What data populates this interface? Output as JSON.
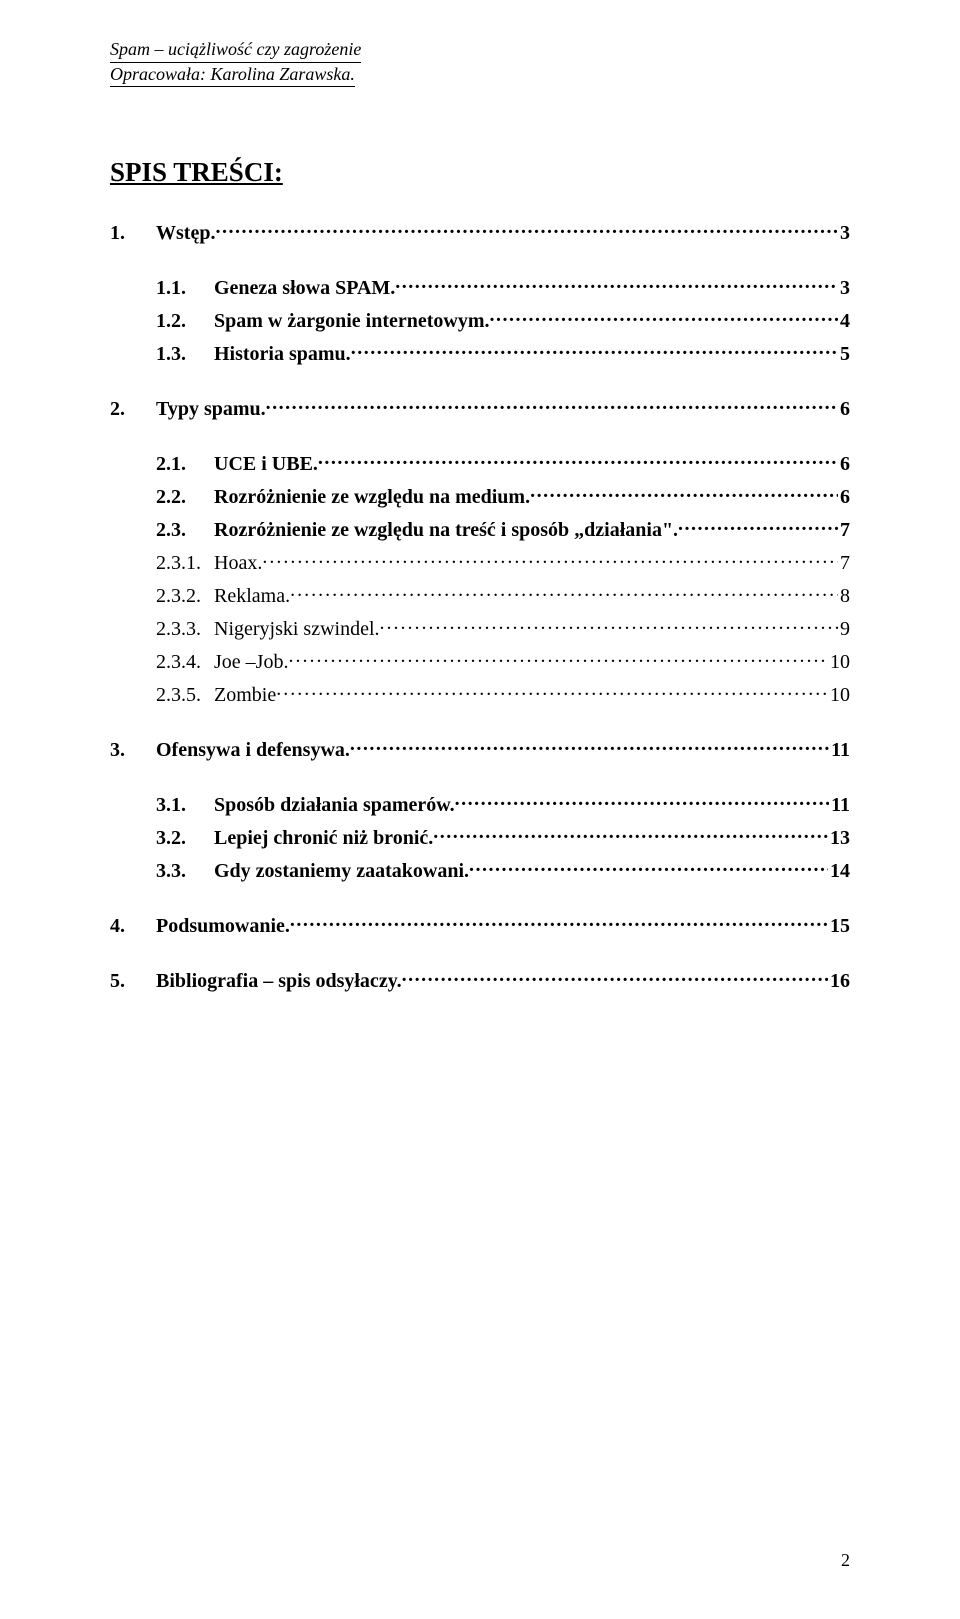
{
  "header": {
    "line1": "Spam – uciążliwość czy zagrożenie",
    "line2": "Opracowała: Karolina Zarawska."
  },
  "title": "SPIS TREŚCI:",
  "toc": [
    {
      "type": "item",
      "level": 0,
      "bold": true,
      "num": "1.",
      "label": "Wstęp.",
      "page": "3"
    },
    {
      "type": "gap"
    },
    {
      "type": "item",
      "level": 1,
      "bold": true,
      "num": "1.1.",
      "label": "Geneza słowa SPAM.",
      "page": "3"
    },
    {
      "type": "item",
      "level": 1,
      "bold": true,
      "num": "1.2.",
      "label": "Spam w żargonie internetowym.",
      "page": "4"
    },
    {
      "type": "item",
      "level": 1,
      "bold": true,
      "num": "1.3.",
      "label": "Historia spamu.",
      "page": "5"
    },
    {
      "type": "gap"
    },
    {
      "type": "item",
      "level": 0,
      "bold": true,
      "num": "2.",
      "label": "Typy spamu.",
      "page": "6"
    },
    {
      "type": "gap"
    },
    {
      "type": "item",
      "level": 1,
      "bold": true,
      "num": "2.1.",
      "label": "UCE i UBE.",
      "page": "6"
    },
    {
      "type": "item",
      "level": 1,
      "bold": true,
      "num": "2.2.",
      "label": "Rozróżnienie ze względu na medium.",
      "page": "6"
    },
    {
      "type": "item",
      "level": 1,
      "bold": true,
      "num": "2.3.",
      "label": "Rozróżnienie ze względu na treść i sposób „działania\".",
      "page": "7"
    },
    {
      "type": "item",
      "level": 1,
      "bold": false,
      "num": "2.3.1.",
      "label": "Hoax.",
      "page": "7"
    },
    {
      "type": "item",
      "level": 1,
      "bold": false,
      "num": "2.3.2.",
      "label": "Reklama.",
      "page": "8"
    },
    {
      "type": "item",
      "level": 1,
      "bold": false,
      "num": "2.3.3.",
      "label": "Nigeryjski szwindel.",
      "page": "9"
    },
    {
      "type": "item",
      "level": 1,
      "bold": false,
      "num": "2.3.4.",
      "label": "Joe –Job.",
      "page": "10"
    },
    {
      "type": "item",
      "level": 1,
      "bold": false,
      "num": "2.3.5.",
      "label": "Zombie",
      "page": "10"
    },
    {
      "type": "gap"
    },
    {
      "type": "item",
      "level": 0,
      "bold": true,
      "num": "3.",
      "label": "Ofensywa i defensywa.",
      "page": "11"
    },
    {
      "type": "gap"
    },
    {
      "type": "item",
      "level": 1,
      "bold": true,
      "num": "3.1.",
      "label": "Sposób działania spamerów.",
      "page": "11"
    },
    {
      "type": "item",
      "level": 1,
      "bold": true,
      "num": "3.2.",
      "label": "Lepiej chronić niż bronić.",
      "page": "13"
    },
    {
      "type": "item",
      "level": 1,
      "bold": true,
      "num": "3.3.",
      "label": "Gdy zostaniemy zaatakowani.",
      "page": "14"
    },
    {
      "type": "gap"
    },
    {
      "type": "item",
      "level": 0,
      "bold": true,
      "num": "4.",
      "label": "Podsumowanie.",
      "page": "15"
    },
    {
      "type": "gap"
    },
    {
      "type": "item",
      "level": 0,
      "bold": true,
      "num": "5.",
      "label": "Bibliografia – spis odsyłaczy.",
      "page": "16"
    }
  ],
  "page_number": "2",
  "colors": {
    "text": "#000000",
    "background": "#ffffff"
  },
  "typography": {
    "body_font": "Times New Roman",
    "header_fontsize_pt": 13,
    "title_fontsize_pt": 20,
    "toc_fontsize_pt": 15
  }
}
